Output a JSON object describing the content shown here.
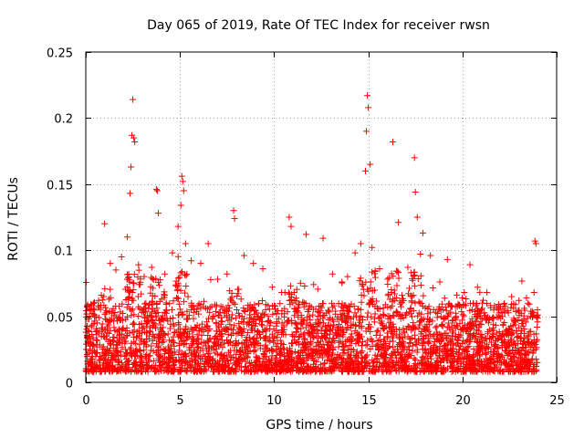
{
  "chart_data": {
    "type": "scatter",
    "title": "Day 065 of 2019, Rate Of TEC Index for receiver rwsn",
    "xlabel": "GPS time / hours",
    "ylabel": "ROTI / TECUs",
    "xlim": [
      0,
      25
    ],
    "ylim": [
      0,
      0.25
    ],
    "x_ticks": [
      0,
      5,
      10,
      15,
      20,
      25
    ],
    "x_tick_labels": [
      "0",
      "5",
      "10",
      "15",
      "20",
      "25"
    ],
    "y_ticks": [
      0,
      0.05,
      0.1,
      0.15,
      0.2,
      0.25
    ],
    "y_tick_labels": [
      "0",
      "0.05",
      "0.1",
      "0.15",
      "0.2",
      "0.25"
    ],
    "grid": true,
    "marker": "+",
    "point_color": "#ff0000",
    "series": [
      {
        "name": "ROTI",
        "x": [
          0.1,
          0.3,
          0.6,
          1.0,
          1.3,
          1.6,
          1.9,
          2.2,
          2.35,
          2.4,
          2.45,
          2.5,
          2.55,
          2.6,
          2.8,
          3.1,
          3.5,
          3.75,
          3.8,
          3.85,
          4.2,
          4.6,
          4.9,
          5.05,
          5.1,
          5.15,
          5.2,
          5.3,
          5.6,
          6.1,
          6.5,
          7.0,
          7.5,
          7.85,
          7.9,
          8.4,
          8.9,
          9.4,
          9.9,
          10.4,
          10.8,
          10.9,
          11.4,
          11.7,
          12.1,
          12.6,
          13.1,
          13.6,
          13.9,
          14.3,
          14.6,
          14.85,
          14.9,
          14.95,
          15.0,
          15.1,
          15.2,
          15.6,
          16.1,
          16.3,
          16.6,
          17.1,
          17.45,
          17.5,
          17.6,
          17.9,
          18.3,
          18.8,
          19.2,
          19.7,
          20.1,
          20.4,
          20.8,
          21.3,
          21.7,
          22.2,
          22.6,
          23.0,
          23.4,
          23.8,
          23.85,
          23.9
        ],
        "y": [
          0.048,
          0.042,
          0.039,
          0.12,
          0.09,
          0.085,
          0.095,
          0.11,
          0.143,
          0.163,
          0.187,
          0.214,
          0.185,
          0.182,
          0.089,
          0.08,
          0.087,
          0.146,
          0.145,
          0.128,
          0.082,
          0.098,
          0.118,
          0.134,
          0.156,
          0.152,
          0.145,
          0.105,
          0.092,
          0.09,
          0.105,
          0.078,
          0.082,
          0.13,
          0.124,
          0.096,
          0.09,
          0.086,
          0.072,
          0.068,
          0.125,
          0.118,
          0.075,
          0.112,
          0.074,
          0.109,
          0.082,
          0.076,
          0.08,
          0.098,
          0.105,
          0.16,
          0.19,
          0.217,
          0.208,
          0.165,
          0.102,
          0.086,
          0.079,
          0.182,
          0.121,
          0.087,
          0.17,
          0.144,
          0.125,
          0.113,
          0.096,
          0.076,
          0.093,
          0.066,
          0.068,
          0.089,
          0.072,
          0.068,
          0.058,
          0.059,
          0.059,
          0.062,
          0.064,
          0.068,
          0.107,
          0.105
        ]
      }
    ]
  }
}
